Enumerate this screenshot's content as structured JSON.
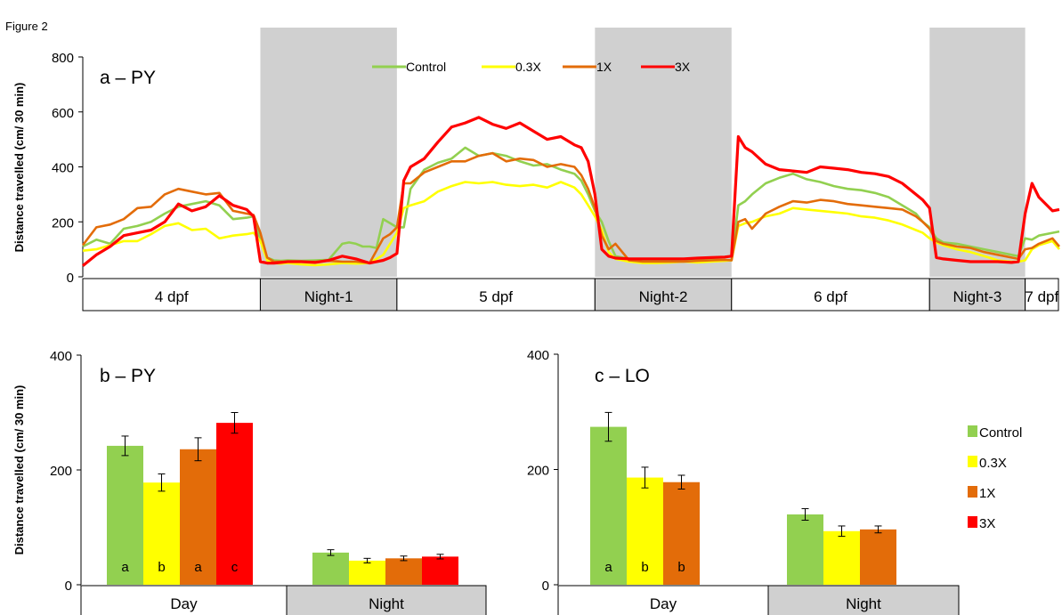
{
  "figure_label": "Figure 2",
  "colors": {
    "Control": "#92d050",
    "0.3X": "#ffff00",
    "1X": "#e36c09",
    "3X": "#ff0000",
    "night_shade": "#d0d0d0",
    "label_bar_night": "#d0d0d0",
    "axis": "#000000"
  },
  "chart_data": [
    {
      "id": "a",
      "type": "line",
      "panel_title": "a – PY",
      "ylabel": "Distance travelled (cm/ 30 min)",
      "ylim": [
        0,
        800
      ],
      "yticks": [
        0,
        200,
        400,
        600,
        800
      ],
      "grid": false,
      "legend": {
        "placement": "top-center",
        "entries": [
          "Control",
          "0.3X",
          "1X",
          "3X"
        ]
      },
      "x_unit": "30-min bin",
      "xlim": [
        0,
        143
      ],
      "periods": [
        {
          "label": "4 dpf",
          "start": 0,
          "end": 26,
          "night": false
        },
        {
          "label": "Night-1",
          "start": 26,
          "end": 46,
          "night": true
        },
        {
          "label": "5 dpf",
          "start": 46,
          "end": 75,
          "night": false
        },
        {
          "label": "Night-2",
          "start": 75,
          "end": 95,
          "night": true
        },
        {
          "label": "6 dpf",
          "start": 95,
          "end": 124,
          "night": false
        },
        {
          "label": "Night-3",
          "start": 124,
          "end": 138,
          "night": true
        },
        {
          "label": "7 dpf",
          "start": 138,
          "end": 143,
          "night": false
        }
      ],
      "series": [
        {
          "name": "Control",
          "x": [
            0,
            2,
            4,
            6,
            8,
            10,
            12,
            14,
            16,
            18,
            20,
            22,
            24,
            25,
            26,
            27,
            28,
            29,
            30,
            32,
            34,
            36,
            38,
            39,
            40,
            41,
            42,
            43,
            44,
            45,
            46,
            47,
            48,
            50,
            52,
            54,
            56,
            58,
            60,
            62,
            64,
            66,
            68,
            70,
            72,
            73,
            74,
            75,
            76,
            77,
            78,
            80,
            82,
            84,
            86,
            88,
            90,
            92,
            94,
            95,
            96,
            97,
            98,
            100,
            102,
            104,
            106,
            108,
            110,
            112,
            114,
            116,
            118,
            120,
            122,
            123,
            124,
            125,
            126,
            128,
            130,
            132,
            134,
            136,
            137,
            138,
            139,
            140,
            142,
            143
          ],
          "y": [
            110,
            135,
            120,
            175,
            185,
            200,
            230,
            255,
            265,
            275,
            260,
            210,
            215,
            220,
            130,
            70,
            60,
            58,
            60,
            58,
            60,
            62,
            120,
            125,
            120,
            110,
            110,
            105,
            210,
            195,
            180,
            180,
            320,
            390,
            415,
            430,
            470,
            440,
            450,
            440,
            420,
            405,
            410,
            390,
            375,
            350,
            300,
            240,
            200,
            130,
            75,
            65,
            62,
            60,
            62,
            60,
            62,
            65,
            60,
            60,
            260,
            275,
            300,
            340,
            360,
            375,
            355,
            345,
            330,
            320,
            315,
            305,
            290,
            260,
            230,
            200,
            180,
            140,
            125,
            120,
            110,
            100,
            90,
            80,
            75,
            140,
            135,
            150,
            160,
            165
          ]
        },
        {
          "name": "0.3X",
          "x": [
            0,
            2,
            4,
            6,
            8,
            10,
            12,
            14,
            16,
            18,
            20,
            22,
            24,
            25,
            26,
            27,
            28,
            29,
            30,
            32,
            34,
            36,
            38,
            40,
            42,
            44,
            45,
            46,
            47,
            48,
            50,
            52,
            54,
            56,
            58,
            60,
            62,
            64,
            66,
            68,
            70,
            72,
            73,
            74,
            75,
            76,
            77,
            78,
            80,
            82,
            84,
            86,
            88,
            90,
            92,
            94,
            95,
            96,
            97,
            98,
            100,
            102,
            104,
            106,
            108,
            110,
            112,
            114,
            116,
            118,
            120,
            122,
            123,
            124,
            125,
            126,
            128,
            130,
            132,
            134,
            136,
            137,
            138,
            139,
            140,
            142,
            143
          ],
          "y": [
            95,
            100,
            115,
            130,
            130,
            155,
            185,
            195,
            170,
            175,
            140,
            150,
            155,
            160,
            130,
            60,
            50,
            48,
            50,
            45,
            42,
            45,
            50,
            48,
            50,
            80,
            120,
            160,
            250,
            260,
            275,
            310,
            330,
            345,
            340,
            345,
            335,
            330,
            335,
            325,
            345,
            325,
            300,
            260,
            220,
            170,
            90,
            65,
            55,
            50,
            50,
            52,
            55,
            52,
            55,
            58,
            60,
            185,
            195,
            200,
            220,
            230,
            250,
            245,
            240,
            235,
            230,
            220,
            215,
            205,
            190,
            170,
            160,
            140,
            125,
            115,
            100,
            90,
            75,
            60,
            55,
            55,
            60,
            100,
            115,
            130,
            100
          ]
        },
        {
          "name": "1X",
          "x": [
            0,
            2,
            4,
            6,
            8,
            10,
            12,
            14,
            16,
            18,
            20,
            22,
            24,
            25,
            26,
            27,
            28,
            29,
            30,
            32,
            34,
            36,
            38,
            40,
            42,
            44,
            45,
            46,
            47,
            48,
            50,
            52,
            54,
            56,
            58,
            60,
            62,
            64,
            66,
            68,
            70,
            72,
            73,
            74,
            75,
            76,
            77,
            78,
            80,
            82,
            84,
            86,
            88,
            90,
            92,
            94,
            95,
            96,
            97,
            98,
            100,
            102,
            104,
            106,
            108,
            110,
            112,
            114,
            116,
            118,
            120,
            122,
            123,
            124,
            125,
            126,
            128,
            130,
            132,
            134,
            136,
            137,
            138,
            139,
            140,
            142,
            143
          ],
          "y": [
            115,
            180,
            190,
            210,
            250,
            255,
            300,
            320,
            310,
            300,
            305,
            240,
            230,
            225,
            160,
            70,
            55,
            55,
            55,
            55,
            55,
            58,
            55,
            55,
            50,
            140,
            155,
            180,
            340,
            340,
            380,
            400,
            420,
            420,
            440,
            450,
            420,
            430,
            425,
            400,
            410,
            400,
            370,
            320,
            250,
            150,
            100,
            120,
            60,
            55,
            55,
            55,
            55,
            58,
            60,
            62,
            60,
            200,
            210,
            175,
            230,
            255,
            275,
            270,
            280,
            275,
            265,
            260,
            255,
            250,
            245,
            220,
            200,
            175,
            130,
            120,
            110,
            105,
            90,
            80,
            70,
            65,
            100,
            105,
            120,
            140,
            110
          ]
        },
        {
          "name": "3X",
          "x": [
            0,
            2,
            4,
            6,
            8,
            10,
            12,
            14,
            16,
            18,
            20,
            22,
            24,
            25,
            26,
            27,
            28,
            29,
            30,
            32,
            34,
            36,
            38,
            40,
            42,
            44,
            45,
            46,
            47,
            48,
            50,
            52,
            54,
            56,
            58,
            60,
            62,
            64,
            66,
            68,
            70,
            72,
            73,
            74,
            75,
            76,
            77,
            78,
            80,
            82,
            84,
            86,
            88,
            90,
            92,
            94,
            95,
            96,
            97,
            98,
            100,
            102,
            104,
            106,
            108,
            110,
            112,
            114,
            116,
            118,
            120,
            122,
            123,
            124,
            125,
            126,
            128,
            130,
            132,
            134,
            136,
            137,
            138,
            139,
            140,
            142,
            143
          ],
          "y": [
            40,
            80,
            110,
            150,
            160,
            170,
            200,
            265,
            240,
            255,
            295,
            260,
            245,
            220,
            55,
            50,
            50,
            52,
            55,
            55,
            52,
            60,
            75,
            65,
            50,
            60,
            70,
            85,
            350,
            400,
            430,
            490,
            545,
            560,
            580,
            555,
            540,
            560,
            530,
            500,
            510,
            480,
            470,
            420,
            300,
            100,
            75,
            68,
            65,
            65,
            65,
            65,
            65,
            68,
            70,
            72,
            75,
            510,
            470,
            455,
            410,
            390,
            385,
            380,
            400,
            395,
            390,
            380,
            375,
            365,
            340,
            300,
            280,
            250,
            70,
            65,
            60,
            55,
            55,
            55,
            52,
            55,
            230,
            340,
            290,
            240,
            245
          ]
        }
      ]
    },
    {
      "id": "b",
      "type": "bar",
      "panel_title": "b – PY",
      "ylabel": "Distance travelled (cm/ 30 min)",
      "ylim": [
        0,
        400
      ],
      "yticks": [
        0,
        200,
        400
      ],
      "grid": false,
      "categories": [
        "Day",
        "Night"
      ],
      "series": [
        {
          "name": "Control",
          "values": [
            242,
            56
          ],
          "errors": [
            17,
            5
          ],
          "letters": [
            "a",
            ""
          ]
        },
        {
          "name": "0.3X",
          "values": [
            178,
            42
          ],
          "errors": [
            15,
            4
          ],
          "letters": [
            "b",
            ""
          ]
        },
        {
          "name": "1X",
          "values": [
            236,
            46
          ],
          "errors": [
            20,
            4
          ],
          "letters": [
            "a",
            ""
          ]
        },
        {
          "name": "3X",
          "values": [
            282,
            49
          ],
          "errors": [
            18,
            4
          ],
          "letters": [
            "c",
            ""
          ]
        }
      ]
    },
    {
      "id": "c",
      "type": "bar",
      "panel_title": "c – LO",
      "ylabel": "",
      "ylim": [
        0,
        400
      ],
      "yticks": [
        0,
        200,
        400
      ],
      "grid": false,
      "legend": {
        "placement": "right",
        "entries": [
          "Control",
          "0.3X",
          "1X",
          "3X"
        ]
      },
      "categories": [
        "Day",
        "Night"
      ],
      "series": [
        {
          "name": "Control",
          "values": [
            274,
            122
          ],
          "errors": [
            25,
            10
          ],
          "letters": [
            "a",
            ""
          ]
        },
        {
          "name": "0.3X",
          "values": [
            186,
            93
          ],
          "errors": [
            18,
            9
          ],
          "letters": [
            "b",
            ""
          ]
        },
        {
          "name": "1X",
          "values": [
            178,
            96
          ],
          "errors": [
            12,
            6
          ],
          "letters": [
            "b",
            ""
          ]
        }
      ]
    }
  ]
}
